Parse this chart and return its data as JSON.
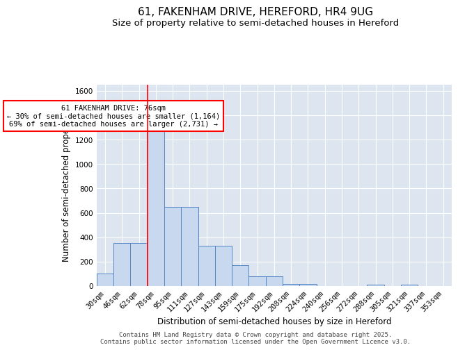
{
  "title1": "61, FAKENHAM DRIVE, HEREFORD, HR4 9UG",
  "title2": "Size of property relative to semi-detached houses in Hereford",
  "xlabel": "Distribution of semi-detached houses by size in Hereford",
  "ylabel": "Number of semi-detached properties",
  "categories": [
    "30sqm",
    "46sqm",
    "62sqm",
    "78sqm",
    "95sqm",
    "111sqm",
    "127sqm",
    "143sqm",
    "159sqm",
    "175sqm",
    "192sqm",
    "208sqm",
    "224sqm",
    "240sqm",
    "256sqm",
    "272sqm",
    "288sqm",
    "305sqm",
    "321sqm",
    "337sqm",
    "353sqm"
  ],
  "values": [
    100,
    350,
    350,
    1300,
    650,
    650,
    330,
    330,
    170,
    80,
    80,
    15,
    15,
    0,
    0,
    0,
    10,
    0,
    10,
    0,
    0
  ],
  "bar_color": "#c8d9ef",
  "bar_edge_color": "#5585c5",
  "vline_color": "red",
  "annotation_text": "61 FAKENHAM DRIVE: 76sqm\n← 30% of semi-detached houses are smaller (1,164)\n69% of semi-detached houses are larger (2,731) →",
  "annotation_box_color": "white",
  "annotation_box_edge_color": "red",
  "ylim": [
    0,
    1650
  ],
  "yticks": [
    0,
    200,
    400,
    600,
    800,
    1000,
    1200,
    1400,
    1600
  ],
  "background_color": "#dde6f0",
  "footer1": "Contains HM Land Registry data © Crown copyright and database right 2025.",
  "footer2": "Contains public sector information licensed under the Open Government Licence v3.0.",
  "title1_fontsize": 11,
  "title2_fontsize": 9.5,
  "axis_label_fontsize": 8.5,
  "tick_fontsize": 7.5,
  "footer_fontsize": 6.5
}
